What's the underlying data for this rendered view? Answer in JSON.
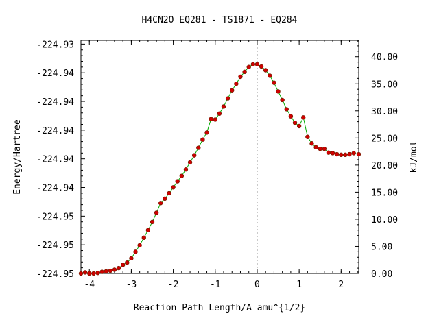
{
  "chart_data": {
    "type": "line",
    "title": "H4CN2O   EQ281 - TS1871 - EQ284",
    "xlabel": "Reaction Path Length/A amu^{1/2}",
    "ylabel": "Energy/Hartree",
    "ylabel_right": "kJ/mol",
    "xlim": [
      -4.2,
      2.42
    ],
    "ylim_right": [
      0.0,
      43.0
    ],
    "x_ticks": [
      -4,
      -3,
      -2,
      -1,
      0,
      1,
      2
    ],
    "x_tick_labels": [
      "-4",
      "-3",
      "-2",
      "-1",
      "0",
      "1",
      "2"
    ],
    "y_ticks_left_kjmol": [
      0,
      5.29,
      10.58,
      15.87,
      21.16,
      26.45,
      31.74,
      37.03,
      42.32
    ],
    "y_tick_labels_left": [
      "-224.95",
      "-224.95",
      "-224.95",
      "-224.94",
      "-224.94",
      "-224.94",
      "-224.94",
      "-224.94",
      "-224.93"
    ],
    "y_ticks_right": [
      0,
      5,
      10,
      15,
      20,
      25,
      30,
      35,
      40
    ],
    "y_tick_labels_right": [
      "0.00",
      "5.00",
      "10.00",
      "15.00",
      "20.00",
      "25.00",
      "30.00",
      "35.00",
      "40.00"
    ],
    "ts_x": 0.0,
    "line_color": "#00aa00",
    "marker_color": "#d00000",
    "series": [
      {
        "x": [
          -4.2,
          -4.1,
          -4.0,
          -3.9,
          -3.8,
          -3.7,
          -3.6,
          -3.5,
          -3.4,
          -3.3,
          -3.2,
          -3.1,
          -3.0,
          -2.9,
          -2.8,
          -2.7,
          -2.6,
          -2.5,
          -2.4,
          -2.3,
          -2.2,
          -2.1,
          -2.0,
          -1.9,
          -1.8,
          -1.7,
          -1.6,
          -1.5,
          -1.4,
          -1.3,
          -1.2,
          -1.1,
          -1.0,
          -0.9,
          -0.8,
          -0.7,
          -0.6,
          -0.5,
          -0.4,
          -0.3,
          -0.2,
          -0.1,
          0.0,
          0.1,
          0.2,
          0.3,
          0.4,
          0.5,
          0.6,
          0.7,
          0.8,
          0.9,
          1.0,
          1.1,
          1.2,
          1.3,
          1.4,
          1.5,
          1.6,
          1.7,
          1.8,
          1.9,
          2.0,
          2.1,
          2.2,
          2.3,
          2.42
        ],
        "y": [
          0.0,
          0.2,
          0.0,
          0.0,
          0.1,
          0.3,
          0.4,
          0.5,
          0.7,
          1.0,
          1.6,
          2.0,
          2.8,
          4.0,
          5.2,
          6.6,
          8.0,
          9.5,
          11.2,
          13.0,
          13.8,
          14.8,
          15.9,
          17.0,
          18.0,
          19.2,
          20.5,
          21.8,
          23.2,
          24.7,
          26.0,
          28.5,
          28.4,
          29.5,
          30.8,
          32.3,
          33.8,
          35.0,
          36.3,
          37.2,
          38.1,
          38.6,
          38.6,
          38.2,
          37.5,
          36.5,
          35.2,
          33.6,
          32.0,
          30.3,
          29.0,
          27.8,
          27.2,
          28.8,
          25.2,
          24.0,
          23.3,
          23.0,
          23.0,
          22.3,
          22.2,
          22.0,
          21.9,
          21.9,
          22.0,
          22.2,
          22.0
        ]
      }
    ]
  }
}
